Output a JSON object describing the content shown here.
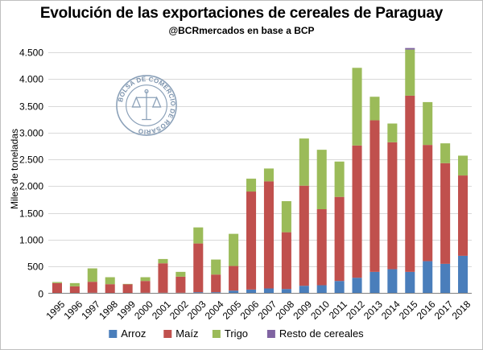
{
  "chart": {
    "title": "Evolución de las exportaciones de cereales de Paraguay",
    "subtitle": "@BCRmercados en base a BCP"
  },
  "watermark": {
    "text": "BOLSA DE COMERCIO DE ROSARIO",
    "icon": "scales-of-justice-seal"
  },
  "chart_data": {
    "type": "bar",
    "stacked": true,
    "title": "Evolución de las exportaciones de cereales de Paraguay",
    "subtitle": "@BCRmercados en base a BCP",
    "xlabel": "",
    "ylabel": "Miles de toneladas",
    "ylim": [
      0,
      4500
    ],
    "yticks": [
      0,
      500,
      1000,
      1500,
      2000,
      2500,
      3000,
      3500,
      4000,
      4500
    ],
    "ytick_labels": [
      "0",
      "500",
      "1.000",
      "1.500",
      "2.000",
      "2.500",
      "3.000",
      "3.500",
      "4.000",
      "4.500"
    ],
    "grid": true,
    "legend": "bottom",
    "categories": [
      "1995",
      "1996",
      "1997",
      "1998",
      "1999",
      "2000",
      "2001",
      "2002",
      "2003",
      "2004",
      "2005",
      "2006",
      "2007",
      "2008",
      "2009",
      "2010",
      "2011",
      "2012",
      "2013",
      "2014",
      "2015",
      "2016",
      "2017",
      "2018"
    ],
    "series": [
      {
        "name": "Arroz",
        "color": "#4a7ebb",
        "values": [
          5,
          5,
          10,
          5,
          5,
          10,
          10,
          10,
          20,
          20,
          50,
          70,
          90,
          80,
          140,
          150,
          230,
          290,
          400,
          450,
          400,
          600,
          550,
          700
        ]
      },
      {
        "name": "Maíz",
        "color": "#c0504d",
        "values": [
          185,
          125,
          205,
          165,
          165,
          220,
          550,
          300,
          910,
          330,
          460,
          1830,
          2000,
          1060,
          1870,
          1420,
          1570,
          2470,
          2830,
          2370,
          3290,
          2170,
          1880,
          1500
        ]
      },
      {
        "name": "Trigo",
        "color": "#9bbb59",
        "values": [
          20,
          60,
          250,
          130,
          5,
          70,
          80,
          90,
          300,
          280,
          600,
          240,
          240,
          580,
          880,
          1110,
          660,
          1450,
          440,
          350,
          860,
          800,
          370,
          370
        ]
      },
      {
        "name": "Resto de cereales",
        "color": "#8064a2",
        "values": [
          0,
          0,
          0,
          0,
          0,
          0,
          0,
          0,
          0,
          0,
          0,
          0,
          0,
          0,
          0,
          0,
          0,
          0,
          0,
          0,
          30,
          0,
          0,
          0
        ]
      }
    ]
  }
}
